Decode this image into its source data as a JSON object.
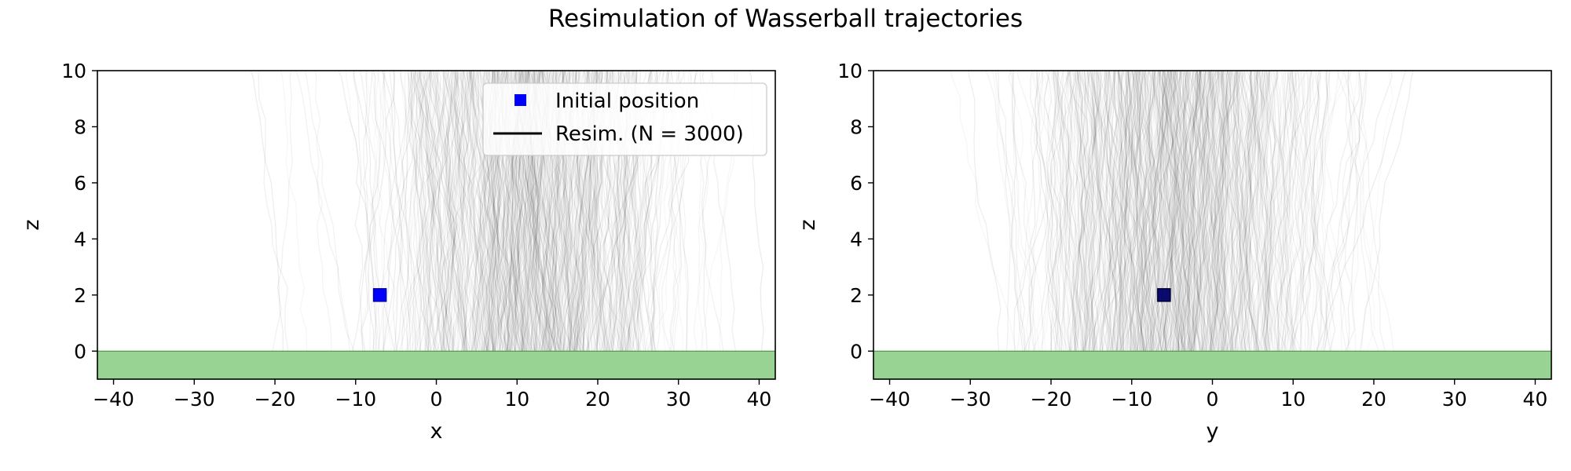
{
  "figure": {
    "title": "Resimulation of Wasserball trajectories"
  },
  "colors": {
    "ground": "#98d394",
    "marker": "#0000ff",
    "trajectory": "#000000"
  },
  "chart_data": [
    {
      "type": "line",
      "title": "",
      "xlabel": "x",
      "ylabel": "z",
      "xlim": [
        -42,
        42
      ],
      "ylim": [
        -1,
        10
      ],
      "xticks": [
        -40,
        -30,
        -20,
        -10,
        0,
        10,
        20,
        30,
        40
      ],
      "xtick_labels": [
        "−40",
        "−30",
        "−20",
        "−10",
        "0",
        "10",
        "20",
        "30",
        "40"
      ],
      "yticks": [
        0,
        2,
        4,
        6,
        8,
        10
      ],
      "ytick_labels": [
        "0",
        "2",
        "4",
        "6",
        "8",
        "10"
      ],
      "grid": false,
      "ground_band": [
        -1,
        0
      ],
      "initial_position": {
        "x": -7,
        "z": 2
      },
      "trajectory_center": 11,
      "trajectory_spread": 9,
      "legend": {
        "placement": "top-right",
        "entries": [
          {
            "label": "Initial position",
            "style": "square-marker"
          },
          {
            "label": "Resim. (N = 3000)",
            "style": "line"
          }
        ]
      }
    },
    {
      "type": "line",
      "title": "",
      "xlabel": "y",
      "ylabel": "z",
      "xlim": [
        -42,
        42
      ],
      "ylim": [
        -1,
        10
      ],
      "xticks": [
        -40,
        -30,
        -20,
        -10,
        0,
        10,
        20,
        30,
        40
      ],
      "xtick_labels": [
        "−40",
        "−30",
        "−20",
        "−10",
        "0",
        "10",
        "20",
        "30",
        "40"
      ],
      "yticks": [
        0,
        2,
        4,
        6,
        8,
        10
      ],
      "ytick_labels": [
        "0",
        "2",
        "4",
        "6",
        "8",
        "10"
      ],
      "grid": false,
      "ground_band": [
        -1,
        0
      ],
      "initial_position": {
        "x": -6,
        "z": 2
      },
      "trajectory_center": -4,
      "trajectory_spread": 9
    }
  ]
}
